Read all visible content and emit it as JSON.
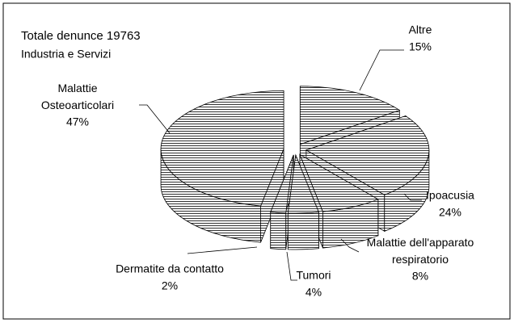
{
  "chart_data": {
    "type": "pie3d",
    "title": "Totale denunce 19763",
    "subtitle": "Industria e Servizi",
    "categories": [
      "Altre",
      "Ipoacusia",
      "Malattie dell'apparato\nrespiratorio",
      "Tumori",
      "Dermatite da contatto",
      "Malattie\nOsteoarticolari"
    ],
    "values": [
      15,
      24,
      8,
      4,
      2,
      47
    ],
    "value_labels": [
      "15%",
      "24%",
      "8%",
      "4%",
      "2%",
      "47%"
    ]
  }
}
